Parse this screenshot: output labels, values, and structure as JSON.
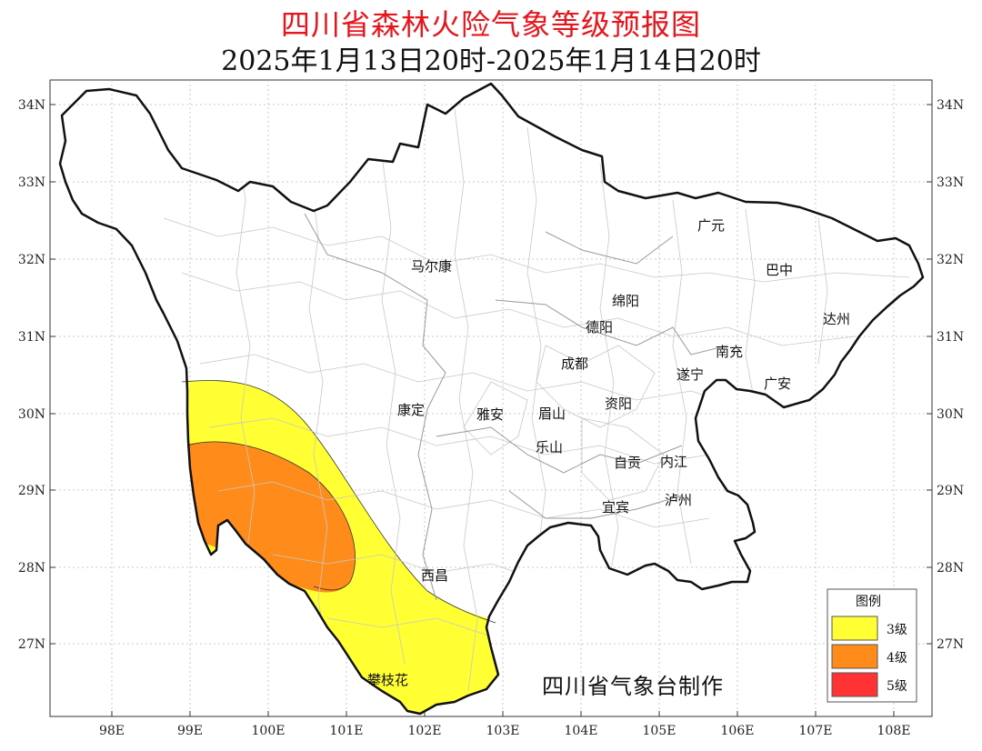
{
  "title": "四川省森林火险气象等级预报图",
  "subtitle": "2025年1月13日20时-2025年1月14日20时",
  "lat_labels": [
    "34N",
    "33N",
    "32N",
    "31N",
    "30N",
    "29N",
    "28N",
    "27N"
  ],
  "lon_labels": [
    "98E",
    "99E",
    "100E",
    "101E",
    "102E",
    "103E",
    "104E",
    "105E",
    "106E",
    "107E",
    "108E"
  ],
  "cities": {
    "maerkang": "马尔康",
    "guangyuan": "广元",
    "bazhong": "巴中",
    "mianyang": "绵阳",
    "deyang": "德阳",
    "dazhou": "达州",
    "nanchong": "南充",
    "chengdu": "成都",
    "suining": "遂宁",
    "guangan": "广安",
    "kangding": "康定",
    "yaan": "雅安",
    "meishan": "眉山",
    "ziyang": "资阳",
    "leshan": "乐山",
    "zigong": "自贡",
    "neijiang": "内江",
    "yibin": "宜宾",
    "luzhou": "泸州",
    "xichang": "西昌",
    "panzhihua": "攀枝花"
  },
  "legend": {
    "title": "图例",
    "items": [
      {
        "label": "3级",
        "color": "#ffff33"
      },
      {
        "label": "4级",
        "color": "#ff8c1a"
      },
      {
        "label": "5级",
        "color": "#ff3333"
      }
    ]
  },
  "credit": "四川省气象台制作"
}
